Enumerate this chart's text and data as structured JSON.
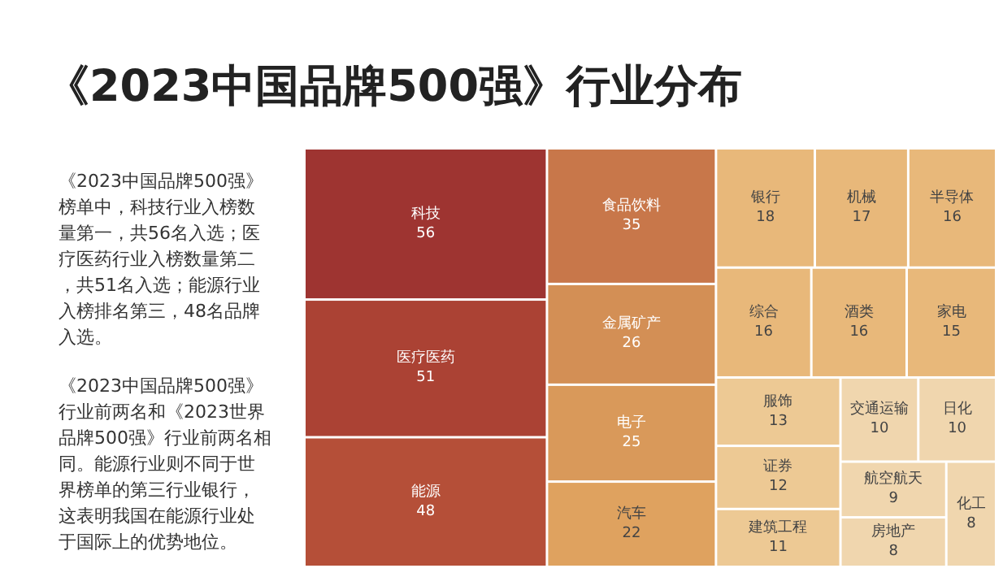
{
  "chart_data": {
    "type": "other",
    "title": "《2023中国品牌500强》行业分布",
    "categories": [
      "科技",
      "医疗医药",
      "能源",
      "食品饮料",
      "金属矿产",
      "电子",
      "汽车",
      "银行",
      "机械",
      "半导体",
      "综合",
      "酒类",
      "家电",
      "服饰",
      "证券",
      "建筑工程",
      "交通运输",
      "日化",
      "航空航天",
      "房地产",
      "化工"
    ],
    "values": [
      56,
      51,
      48,
      35,
      26,
      25,
      22,
      18,
      17,
      16,
      16,
      16,
      15,
      13,
      12,
      11,
      10,
      10,
      9,
      8,
      8
    ],
    "colors": [
      "#9e3431",
      "#ab4234",
      "#b54f38",
      "#c8774a",
      "#d38f55",
      "#d9995a",
      "#dfa25f",
      "#e8b87a",
      "#e8b87a",
      "#e8b87a",
      "#e8b87a",
      "#e8b87a",
      "#e8b87a",
      "#edc994",
      "#edc994",
      "#edc994",
      "#f0d6ae",
      "#f0d6ae",
      "#f0d6ae",
      "#f0d6ae",
      "#f0d6ae"
    ],
    "data_labels": true,
    "annotations": [
      "《2023中国品牌500强》榜单中，科技行业入榜数量第一，共56名入选；医疗医药行业入榜数量第二，共51名入选；能源行业入榜排名第三，48名品牌入选。",
      "《2023中国品牌500强》行业前两名和《2023世界品牌500强》行业前两名相同。能源行业则不同于世界榜单的第三行业银行，这表明我国在能源行业处于国际上的优势地位。"
    ]
  }
}
